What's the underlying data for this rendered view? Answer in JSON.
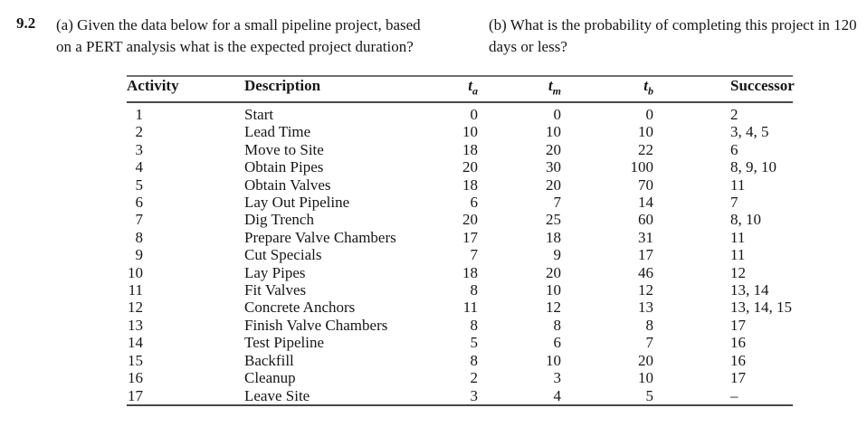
{
  "problem": {
    "number": "9.2",
    "part_a_lines": [
      "(a) Given the data below for a small pipeline project, based",
      "on a PERT analysis what is the expected project duration?"
    ],
    "part_b_lines": [
      "(b) What is the probability of completing this project in 120",
      "days or less?"
    ]
  },
  "table": {
    "columns": [
      {
        "label": "Activity"
      },
      {
        "label": "Description"
      },
      {
        "label": "t",
        "sub": "a"
      },
      {
        "label": "t",
        "sub": "m"
      },
      {
        "label": "t",
        "sub": "b"
      },
      {
        "label": "Successor"
      }
    ],
    "rows": [
      {
        "activity": "1",
        "description": "Start",
        "ta": "0",
        "tm": "0",
        "tb": "0",
        "successor": "2"
      },
      {
        "activity": "2",
        "description": "Lead Time",
        "ta": "10",
        "tm": "10",
        "tb": "10",
        "successor": "3, 4, 5"
      },
      {
        "activity": "3",
        "description": "Move to Site",
        "ta": "18",
        "tm": "20",
        "tb": "22",
        "successor": "6"
      },
      {
        "activity": "4",
        "description": "Obtain Pipes",
        "ta": "20",
        "tm": "30",
        "tb": "100",
        "successor": "8, 9, 10"
      },
      {
        "activity": "5",
        "description": "Obtain Valves",
        "ta": "18",
        "tm": "20",
        "tb": "70",
        "successor": "11"
      },
      {
        "activity": "6",
        "description": "Lay Out Pipeline",
        "ta": "6",
        "tm": "7",
        "tb": "14",
        "successor": "7"
      },
      {
        "activity": "7",
        "description": "Dig Trench",
        "ta": "20",
        "tm": "25",
        "tb": "60",
        "successor": "8, 10"
      },
      {
        "activity": "8",
        "description": "Prepare Valve Chambers",
        "ta": "17",
        "tm": "18",
        "tb": "31",
        "successor": "11"
      },
      {
        "activity": "9",
        "description": "Cut Specials",
        "ta": "7",
        "tm": "9",
        "tb": "17",
        "successor": "11"
      },
      {
        "activity": "10",
        "description": "Lay Pipes",
        "ta": "18",
        "tm": "20",
        "tb": "46",
        "successor": "12"
      },
      {
        "activity": "11",
        "description": "Fit Valves",
        "ta": "8",
        "tm": "10",
        "tb": "12",
        "successor": "13, 14"
      },
      {
        "activity": "12",
        "description": "Concrete Anchors",
        "ta": "11",
        "tm": "12",
        "tb": "13",
        "successor": "13, 14, 15"
      },
      {
        "activity": "13",
        "description": "Finish Valve Chambers",
        "ta": "8",
        "tm": "8",
        "tb": "8",
        "successor": "17"
      },
      {
        "activity": "14",
        "description": "Test Pipeline",
        "ta": "5",
        "tm": "6",
        "tb": "7",
        "successor": "16"
      },
      {
        "activity": "15",
        "description": "Backfill",
        "ta": "8",
        "tm": "10",
        "tb": "20",
        "successor": "16"
      },
      {
        "activity": "16",
        "description": "Cleanup",
        "ta": "2",
        "tm": "3",
        "tb": "10",
        "successor": "17"
      },
      {
        "activity": "17",
        "description": "Leave Site",
        "ta": "3",
        "tm": "4",
        "tb": "5",
        "successor": "–"
      }
    ]
  },
  "colors": {
    "text": "#161616",
    "rule_top": "#6d6d6d",
    "rule": "#474747",
    "background": "#ffffff"
  }
}
